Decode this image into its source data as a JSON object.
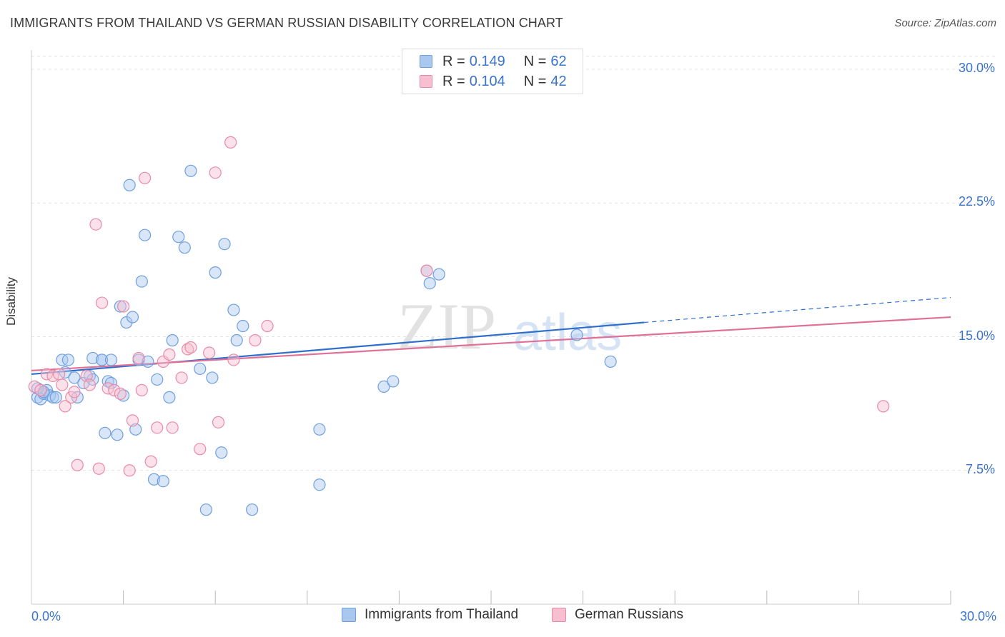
{
  "header": {
    "title": "IMMIGRANTS FROM THAILAND VS GERMAN RUSSIAN DISABILITY CORRELATION CHART",
    "source": "Source: ZipAtlas.com"
  },
  "watermark": {
    "zip": "ZIP",
    "atlas": "atlas"
  },
  "legend_top": [
    {
      "r_label": "R =",
      "r_value": "0.149",
      "n_label": "N =",
      "n_value": "62",
      "color": "#a8c8f0",
      "border": "#6f9fe0"
    },
    {
      "r_label": "R =",
      "r_value": "0.104",
      "n_label": "N =",
      "n_value": "42",
      "color": "#f7bfd0",
      "border": "#e98aa8"
    }
  ],
  "legend_bottom": [
    {
      "label": "Immigrants from Thailand",
      "color": "#a8c8f0",
      "border": "#6f9fe0"
    },
    {
      "label": "German Russians",
      "color": "#f7bfd0",
      "border": "#e98aa8"
    }
  ],
  "colors": {
    "blue_line": "#2e6fcc",
    "pink_line": "#e07098",
    "blue_fill": "rgba(168,200,240,0.45)",
    "blue_stroke": "#6f9fe0",
    "pink_fill": "rgba(247,191,208,0.45)",
    "pink_stroke": "#e98aa8",
    "grid": "#e3e3e3",
    "tick_text": "#3b74cc"
  },
  "chart_data": {
    "type": "scatter",
    "ylabel": "Disability",
    "xlim": [
      0,
      30
    ],
    "ylim": [
      0,
      31
    ],
    "y_ticks": [
      {
        "value": 7.5,
        "label": "7.5%"
      },
      {
        "value": 15.0,
        "label": "15.0%"
      },
      {
        "value": 22.5,
        "label": "22.5%"
      },
      {
        "value": 30.0,
        "label": "30.0%"
      }
    ],
    "x_tick_labels": [
      {
        "value": 0,
        "label": "0.0%"
      },
      {
        "value": 30,
        "label": "30.0%"
      }
    ],
    "x_minor_ticks": [
      3,
      6,
      9,
      12,
      15,
      18,
      21,
      24,
      27,
      30
    ],
    "grid": true,
    "series": [
      {
        "name": "Immigrants from Thailand",
        "color": "blue",
        "points": [
          [
            0.2,
            11.6
          ],
          [
            0.3,
            11.5
          ],
          [
            0.4,
            11.8
          ],
          [
            0.5,
            12.0
          ],
          [
            0.6,
            11.7
          ],
          [
            0.7,
            11.6
          ],
          [
            1.0,
            13.7
          ],
          [
            1.1,
            13.0
          ],
          [
            1.2,
            13.7
          ],
          [
            1.4,
            12.7
          ],
          [
            1.5,
            11.6
          ],
          [
            1.7,
            12.4
          ],
          [
            1.9,
            12.8
          ],
          [
            2.0,
            12.6
          ],
          [
            2.0,
            13.8
          ],
          [
            2.3,
            13.7
          ],
          [
            2.3,
            13.7
          ],
          [
            2.4,
            9.6
          ],
          [
            2.5,
            12.5
          ],
          [
            2.6,
            12.4
          ],
          [
            2.6,
            13.7
          ],
          [
            2.8,
            9.5
          ],
          [
            2.9,
            16.7
          ],
          [
            3.0,
            11.7
          ],
          [
            3.1,
            15.8
          ],
          [
            3.2,
            23.5
          ],
          [
            3.3,
            16.1
          ],
          [
            3.4,
            9.8
          ],
          [
            3.5,
            13.7
          ],
          [
            3.6,
            18.1
          ],
          [
            3.7,
            20.7
          ],
          [
            3.8,
            13.6
          ],
          [
            4.0,
            7.0
          ],
          [
            4.1,
            12.6
          ],
          [
            4.3,
            6.9
          ],
          [
            4.5,
            11.6
          ],
          [
            4.6,
            14.8
          ],
          [
            4.8,
            20.6
          ],
          [
            5.0,
            20.0
          ],
          [
            5.2,
            24.3
          ],
          [
            5.5,
            13.2
          ],
          [
            5.7,
            5.3
          ],
          [
            5.9,
            12.7
          ],
          [
            6.0,
            18.6
          ],
          [
            6.2,
            8.5
          ],
          [
            6.3,
            20.2
          ],
          [
            6.6,
            16.5
          ],
          [
            6.7,
            14.8
          ],
          [
            6.9,
            15.6
          ],
          [
            7.2,
            5.3
          ],
          [
            9.4,
            9.8
          ],
          [
            9.4,
            6.7
          ],
          [
            11.5,
            12.2
          ],
          [
            11.8,
            12.5
          ],
          [
            12.9,
            18.7
          ],
          [
            13.0,
            18.0
          ],
          [
            13.3,
            18.5
          ],
          [
            17.8,
            15.1
          ],
          [
            18.9,
            13.6
          ],
          [
            0.2,
            12.1
          ],
          [
            0.4,
            11.9
          ],
          [
            0.8,
            11.6
          ]
        ],
        "trend": {
          "x0": 0,
          "y0": 12.9,
          "x1": 20.0,
          "y1": 15.8,
          "dash_x1": 30,
          "dash_y1": 17.2
        }
      },
      {
        "name": "German Russians",
        "color": "pink",
        "points": [
          [
            0.1,
            12.2
          ],
          [
            0.3,
            12.0
          ],
          [
            0.5,
            12.9
          ],
          [
            0.7,
            12.8
          ],
          [
            0.9,
            12.9
          ],
          [
            1.0,
            12.3
          ],
          [
            1.1,
            11.1
          ],
          [
            1.3,
            11.6
          ],
          [
            1.4,
            11.9
          ],
          [
            1.5,
            7.8
          ],
          [
            1.8,
            12.8
          ],
          [
            1.9,
            12.3
          ],
          [
            2.1,
            21.3
          ],
          [
            2.2,
            7.6
          ],
          [
            2.3,
            16.9
          ],
          [
            2.5,
            12.1
          ],
          [
            2.7,
            12.0
          ],
          [
            2.9,
            11.8
          ],
          [
            3.0,
            16.7
          ],
          [
            3.2,
            7.5
          ],
          [
            3.3,
            10.3
          ],
          [
            3.5,
            13.8
          ],
          [
            3.6,
            12.0
          ],
          [
            3.7,
            23.9
          ],
          [
            3.9,
            8.0
          ],
          [
            4.1,
            9.9
          ],
          [
            4.3,
            13.6
          ],
          [
            4.5,
            14.0
          ],
          [
            4.6,
            9.9
          ],
          [
            4.9,
            12.7
          ],
          [
            5.1,
            14.3
          ],
          [
            5.2,
            14.4
          ],
          [
            5.5,
            8.7
          ],
          [
            5.8,
            14.1
          ],
          [
            6.0,
            24.2
          ],
          [
            6.1,
            10.2
          ],
          [
            6.5,
            25.9
          ],
          [
            6.6,
            13.7
          ],
          [
            7.3,
            14.8
          ],
          [
            7.7,
            15.6
          ],
          [
            12.9,
            18.7
          ],
          [
            27.8,
            11.1
          ]
        ],
        "trend": {
          "x0": 0,
          "y0": 13.1,
          "x1": 30,
          "y1": 16.1
        }
      }
    ]
  }
}
